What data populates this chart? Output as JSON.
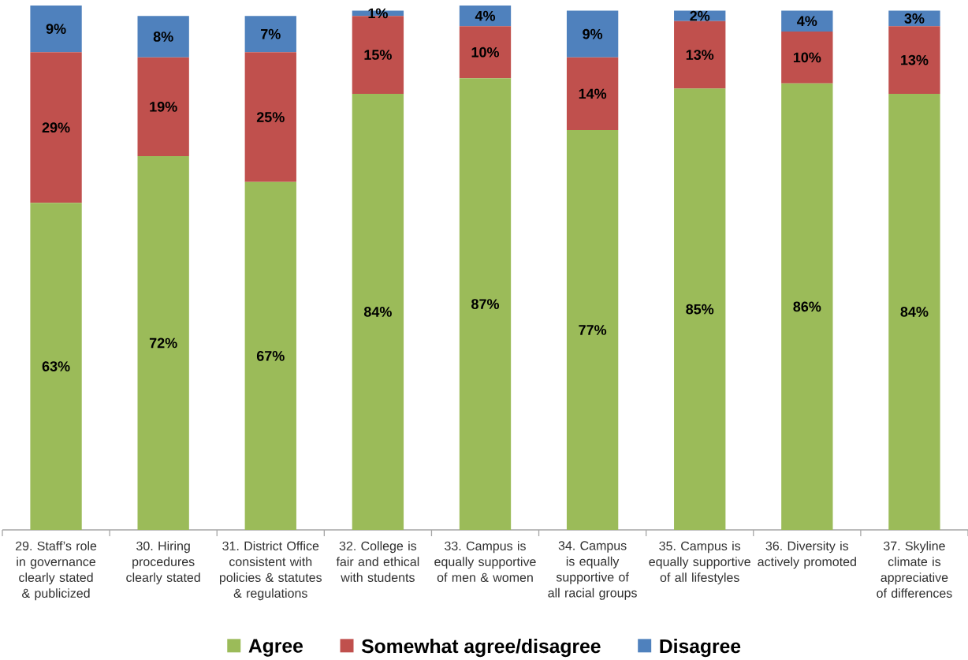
{
  "chart_data": {
    "type": "bar",
    "stacked": true,
    "categories": [
      "29. Staff’s role in governance clearly stated & publicized",
      "30. Hiring procedures clearly stated",
      "31. District Office consistent with policies & statutes & regulations",
      "32. College is fair and ethical with students",
      "33. Campus is equally supportive of men & women",
      "34. Campus is equally supportive of all racial groups",
      "35. Campus is equally supportive of all lifestyles",
      "36. Diversity is actively promoted",
      "37. Skyline climate is appreciative of differences"
    ],
    "series": [
      {
        "name": "Agree",
        "color": "#9bbb59",
        "values": [
          63,
          72,
          67,
          84,
          87,
          77,
          85,
          86,
          84
        ],
        "value_labels": [
          "63%",
          "72%",
          "67%",
          "84%",
          "87%",
          "77%",
          "85%",
          "86%",
          "84%"
        ]
      },
      {
        "name": "Somewhat agree/disagree",
        "color": "#c0504d",
        "values": [
          29,
          19,
          25,
          15,
          10,
          14,
          13,
          10,
          13
        ],
        "value_labels": [
          "29%",
          "19%",
          "25%",
          "15%",
          "10%",
          "14%",
          "13%",
          "10%",
          "13%"
        ]
      },
      {
        "name": "Disagree",
        "color": "#4f81bd",
        "values": [
          9,
          8,
          7,
          1,
          4,
          9,
          2,
          4,
          3
        ],
        "value_labels": [
          "9%",
          "8%",
          "7%",
          "1%",
          "4%",
          "9%",
          "2%",
          "4%",
          "3%"
        ]
      }
    ],
    "ylim": [
      0,
      101
    ],
    "legend": "bottom",
    "tick_labels": "x"
  }
}
